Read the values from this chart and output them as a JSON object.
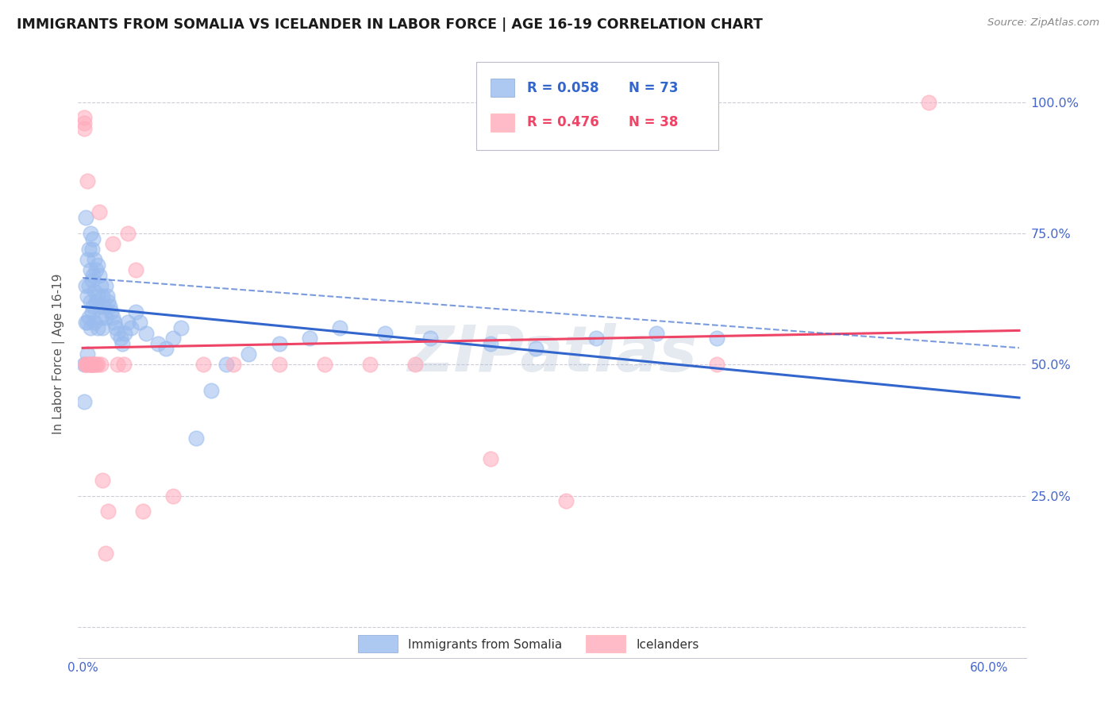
{
  "title": "IMMIGRANTS FROM SOMALIA VS ICELANDER IN LABOR FORCE | AGE 16-19 CORRELATION CHART",
  "source": "Source: ZipAtlas.com",
  "ylabel": "In Labor Force | Age 16-19",
  "y_ticks": [
    0.0,
    0.25,
    0.5,
    0.75,
    1.0
  ],
  "y_tick_labels": [
    "",
    "25.0%",
    "50.0%",
    "75.0%",
    "100.0%"
  ],
  "xlim": [
    -0.003,
    0.625
  ],
  "ylim": [
    -0.06,
    1.1
  ],
  "R1": "0.058",
  "N1": "73",
  "R2": "0.476",
  "N2": "38",
  "blue_fill": "#99BBEE",
  "pink_fill": "#FFAABB",
  "blue_line_color": "#3366CC",
  "pink_line_color": "#EE4466",
  "axis_color": "#4466CC",
  "grid_color": "#CCCCDD",
  "bg_color": "#FFFFFF",
  "watermark": "ZIPatlas",
  "watermark_color": "#AABBD0",
  "legend1": "Immigrants from Somalia",
  "legend2": "Icelanders",
  "soma_x": [
    0.001,
    0.001,
    0.002,
    0.002,
    0.002,
    0.003,
    0.003,
    0.003,
    0.003,
    0.004,
    0.004,
    0.004,
    0.005,
    0.005,
    0.005,
    0.005,
    0.006,
    0.006,
    0.006,
    0.007,
    0.007,
    0.007,
    0.008,
    0.008,
    0.008,
    0.009,
    0.009,
    0.01,
    0.01,
    0.01,
    0.011,
    0.011,
    0.012,
    0.012,
    0.013,
    0.013,
    0.014,
    0.015,
    0.015,
    0.016,
    0.017,
    0.018,
    0.019,
    0.02,
    0.021,
    0.022,
    0.023,
    0.025,
    0.026,
    0.028,
    0.03,
    0.032,
    0.035,
    0.038,
    0.042,
    0.05,
    0.055,
    0.06,
    0.065,
    0.075,
    0.085,
    0.095,
    0.11,
    0.13,
    0.15,
    0.17,
    0.2,
    0.23,
    0.27,
    0.3,
    0.34,
    0.38,
    0.42
  ],
  "soma_y": [
    0.5,
    0.43,
    0.78,
    0.65,
    0.58,
    0.7,
    0.63,
    0.58,
    0.52,
    0.72,
    0.65,
    0.59,
    0.75,
    0.68,
    0.62,
    0.57,
    0.72,
    0.66,
    0.6,
    0.74,
    0.67,
    0.61,
    0.7,
    0.64,
    0.58,
    0.68,
    0.62,
    0.69,
    0.63,
    0.57,
    0.67,
    0.61,
    0.65,
    0.59,
    0.63,
    0.57,
    0.61,
    0.65,
    0.59,
    0.63,
    0.62,
    0.61,
    0.6,
    0.59,
    0.58,
    0.57,
    0.56,
    0.55,
    0.54,
    0.56,
    0.58,
    0.57,
    0.6,
    0.58,
    0.56,
    0.54,
    0.53,
    0.55,
    0.57,
    0.36,
    0.45,
    0.5,
    0.52,
    0.54,
    0.55,
    0.57,
    0.56,
    0.55,
    0.54,
    0.53,
    0.55,
    0.56,
    0.55
  ],
  "ice_x": [
    0.001,
    0.001,
    0.001,
    0.002,
    0.002,
    0.003,
    0.003,
    0.004,
    0.005,
    0.005,
    0.006,
    0.006,
    0.007,
    0.008,
    0.009,
    0.01,
    0.011,
    0.012,
    0.013,
    0.015,
    0.017,
    0.02,
    0.023,
    0.027,
    0.03,
    0.035,
    0.04,
    0.06,
    0.08,
    0.1,
    0.13,
    0.16,
    0.19,
    0.22,
    0.27,
    0.32,
    0.42,
    0.56
  ],
  "ice_y": [
    0.97,
    0.95,
    0.96,
    0.5,
    0.5,
    0.85,
    0.5,
    0.5,
    0.5,
    0.5,
    0.5,
    0.5,
    0.5,
    0.5,
    0.5,
    0.5,
    0.79,
    0.5,
    0.28,
    0.14,
    0.22,
    0.73,
    0.5,
    0.5,
    0.75,
    0.68,
    0.22,
    0.25,
    0.5,
    0.5,
    0.5,
    0.5,
    0.5,
    0.5,
    0.32,
    0.24,
    0.5,
    1.0
  ]
}
